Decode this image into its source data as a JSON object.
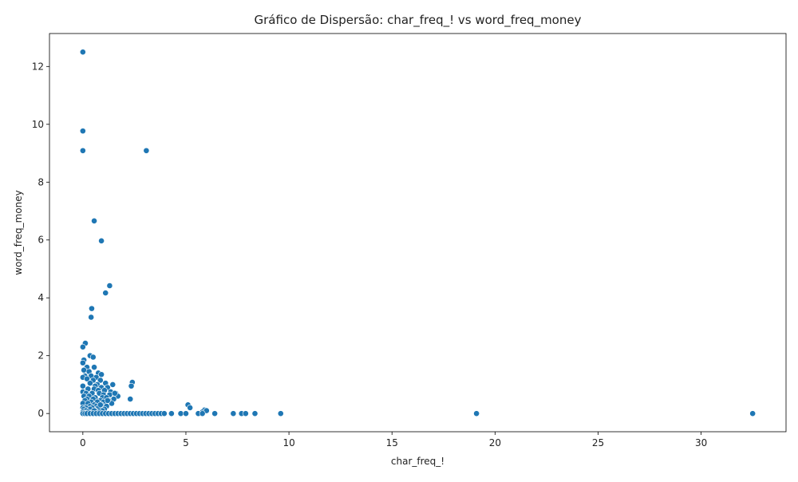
{
  "chart_data": {
    "type": "scatter",
    "title": "Gráfico de Dispersão: char_freq_! vs word_freq_money",
    "xlabel": "char_freq_!",
    "ylabel": "word_freq_money",
    "xlim": [
      -1.62,
      34.12
    ],
    "ylim": [
      -0.63,
      13.14
    ],
    "xticks": [
      0,
      5,
      10,
      15,
      20,
      25,
      30
    ],
    "yticks": [
      0,
      2,
      4,
      6,
      8,
      10,
      12
    ],
    "grid": false,
    "legend": "none",
    "marker_color": "#1f77b4",
    "series": [
      {
        "x": [
          0,
          0,
          0,
          3.08,
          0.55,
          0.9,
          1.3,
          1.1,
          0.43,
          0.4,
          0.12,
          0,
          0.35,
          0.5,
          0.05,
          0,
          0.2,
          0.55,
          0.05,
          0.3,
          0.75,
          0.9,
          0.1,
          0.4,
          0.65,
          0,
          0.2,
          0.5,
          0.85,
          1.1,
          0.35,
          0.7,
          1.45,
          0,
          0.6,
          0.9,
          1.2,
          1.6,
          0.25,
          0.55,
          0.75,
          1.05,
          1.35,
          0,
          0.15,
          0.45,
          0.8,
          1.0,
          1.3,
          1.7,
          0.05,
          0.3,
          0.6,
          0.95,
          1.15,
          1.5,
          0.2,
          0.5,
          0.85,
          1.25,
          0.1,
          0.4,
          0.7,
          1.0,
          1.4,
          0,
          0.25,
          0.55,
          0.9,
          0.35,
          0.65,
          1.15,
          0,
          0.15,
          0.45,
          0.75,
          1.05,
          0.05,
          0.35,
          0.6,
          0.95,
          0.15,
          0.45,
          0.8,
          0,
          0.25,
          0.55,
          0.85,
          1.2,
          1.55,
          2.4,
          2.35,
          2.3,
          5.1,
          5.2,
          5.9,
          5.8,
          6.0,
          0,
          0.1,
          0.2,
          0.35,
          0.5,
          0.65,
          0.8,
          0.95,
          1.1,
          1.25,
          1.4,
          1.55,
          1.7,
          1.85,
          2.0,
          2.15,
          2.3,
          2.45,
          2.6,
          2.75,
          2.9,
          3.05,
          3.2,
          3.35,
          3.5,
          3.65,
          3.8,
          3.95,
          4.3,
          4.75,
          5.0,
          5.6,
          5.8,
          6.4,
          7.3,
          7.7,
          7.9,
          8.35,
          9.6,
          19.1,
          32.5
        ],
        "y": [
          12.5,
          9.77,
          9.09,
          9.09,
          6.66,
          5.97,
          4.42,
          4.17,
          3.63,
          3.33,
          2.43,
          2.3,
          2.0,
          1.95,
          1.85,
          1.75,
          1.6,
          1.6,
          1.5,
          1.45,
          1.4,
          1.35,
          1.3,
          1.3,
          1.25,
          1.25,
          1.2,
          1.15,
          1.15,
          1.05,
          1.05,
          1.0,
          1.0,
          0.95,
          0.95,
          0.9,
          0.9,
          0.7,
          0.85,
          0.85,
          0.8,
          0.8,
          0.75,
          0.75,
          0.7,
          0.7,
          0.7,
          0.65,
          0.65,
          0.6,
          0.6,
          0.6,
          0.55,
          0.55,
          0.55,
          0.5,
          0.5,
          0.5,
          0.45,
          0.45,
          0.45,
          0.4,
          0.4,
          0.4,
          0.35,
          0.35,
          0.35,
          0.3,
          0.3,
          0.25,
          0.25,
          0.25,
          0.2,
          0.2,
          0.2,
          0.2,
          0.15,
          0.15,
          0.15,
          0.1,
          0.1,
          0.1,
          0.05,
          0.05,
          0.05,
          0.05,
          0.1,
          0.3,
          0.45,
          0.7,
          1.08,
          0.95,
          0.5,
          0.3,
          0.2,
          0.12,
          0.05,
          0.1,
          0,
          0,
          0,
          0,
          0,
          0,
          0,
          0,
          0,
          0,
          0,
          0,
          0,
          0,
          0,
          0,
          0,
          0,
          0,
          0,
          0,
          0,
          0,
          0,
          0,
          0,
          0,
          0,
          0,
          0,
          0,
          0,
          0,
          0,
          0,
          0,
          0,
          0,
          0,
          0,
          0
        ]
      }
    ]
  }
}
